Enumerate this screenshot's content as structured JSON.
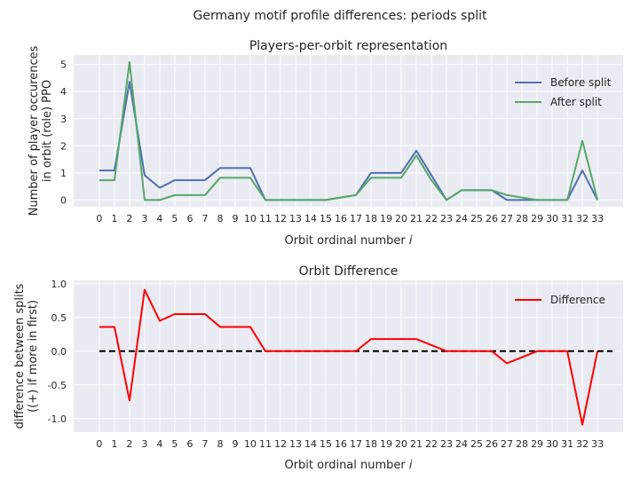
{
  "suptitle": "Germany motif profile differences: periods split",
  "colors": {
    "background": "#EAEAF2",
    "grid": "#FFFFFF",
    "before": "#4C72B0",
    "after": "#55A868",
    "difference": "#FF0000",
    "zero": "#000000"
  },
  "chart_data": [
    {
      "type": "line",
      "title": "Players-per-orbit representation",
      "xlabel": "Orbit ordinal number i",
      "ylabel": "Number of player occurences\nin orbit (role) PPO",
      "xlim": [
        -1.7,
        34.7
      ],
      "ylim": [
        -0.25,
        5.35
      ],
      "xticks": [
        0,
        1,
        2,
        3,
        4,
        5,
        6,
        7,
        8,
        9,
        10,
        11,
        12,
        13,
        14,
        15,
        16,
        17,
        18,
        19,
        20,
        21,
        22,
        23,
        24,
        25,
        26,
        27,
        28,
        29,
        30,
        31,
        32,
        33
      ],
      "yticks": [
        0,
        1,
        2,
        3,
        4,
        5
      ],
      "grid": true,
      "legend": "top-right",
      "x": [
        0,
        1,
        2,
        3,
        4,
        5,
        6,
        7,
        8,
        9,
        10,
        11,
        12,
        13,
        14,
        15,
        16,
        17,
        18,
        19,
        20,
        21,
        22,
        23,
        24,
        25,
        26,
        27,
        28,
        29,
        30,
        31,
        32,
        33
      ],
      "series": [
        {
          "name": "Before split",
          "color": "#4C72B0",
          "values": [
            1.09,
            1.09,
            4.36,
            0.91,
            0.45,
            0.73,
            0.73,
            0.73,
            1.18,
            1.18,
            1.18,
            0,
            0,
            0,
            0,
            0,
            0.09,
            0.18,
            1.0,
            1.0,
            1.0,
            1.82,
            0.91,
            0,
            0.36,
            0.36,
            0.36,
            0,
            0,
            0,
            0,
            0,
            1.09,
            0
          ]
        },
        {
          "name": "After split",
          "color": "#55A868",
          "values": [
            0.73,
            0.73,
            5.09,
            0,
            0,
            0.18,
            0.18,
            0.18,
            0.82,
            0.82,
            0.82,
            0,
            0,
            0,
            0,
            0,
            0.09,
            0.18,
            0.82,
            0.82,
            0.82,
            1.64,
            0.73,
            0,
            0.36,
            0.36,
            0.36,
            0.18,
            0.09,
            0,
            0,
            0,
            2.18,
            0
          ]
        }
      ]
    },
    {
      "type": "line",
      "title": "Orbit Difference",
      "xlabel": "Orbit ordinal number i",
      "ylabel": "difference between splits\n((+) if more in first)",
      "xlim": [
        -1.7,
        34.7
      ],
      "ylim": [
        -1.2,
        1.05
      ],
      "xticks": [
        0,
        1,
        2,
        3,
        4,
        5,
        6,
        7,
        8,
        9,
        10,
        11,
        12,
        13,
        14,
        15,
        16,
        17,
        18,
        19,
        20,
        21,
        22,
        23,
        24,
        25,
        26,
        27,
        28,
        29,
        30,
        31,
        32,
        33
      ],
      "yticks": [
        -1.0,
        -0.5,
        0.0,
        0.5,
        1.0
      ],
      "grid": true,
      "legend": "top-right",
      "x": [
        0,
        1,
        2,
        3,
        4,
        5,
        6,
        7,
        8,
        9,
        10,
        11,
        12,
        13,
        14,
        15,
        16,
        17,
        18,
        19,
        20,
        21,
        22,
        23,
        24,
        25,
        26,
        27,
        28,
        29,
        30,
        31,
        32,
        33
      ],
      "series": [
        {
          "name": "Difference",
          "color": "#FF0000",
          "values": [
            0.36,
            0.36,
            -0.73,
            0.91,
            0.45,
            0.55,
            0.55,
            0.55,
            0.36,
            0.36,
            0.36,
            0,
            0,
            0,
            0,
            0,
            0,
            0,
            0.18,
            0.18,
            0.18,
            0.18,
            0.09,
            0,
            0,
            0,
            0,
            -0.18,
            -0.09,
            0,
            0,
            0,
            -1.09,
            0
          ]
        }
      ],
      "reference_line": {
        "y": 0,
        "x_range": [
          0,
          34
        ],
        "style": "dashed",
        "color": "#000000"
      }
    }
  ]
}
